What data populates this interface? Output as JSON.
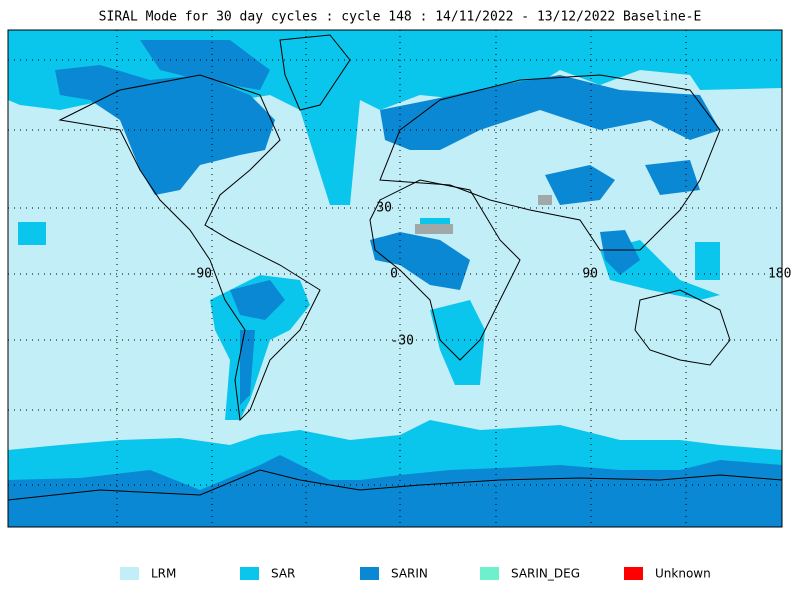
{
  "title": "SIRAL Mode for 30 day cycles : cycle 148 : 14/11/2022 - 13/12/2022 Baseline-E",
  "graticule_labels": {
    "lat_30": "30",
    "lon_m90": "-90",
    "lon_0": "0",
    "lon_90": "90",
    "lon_180": "180",
    "lat_m30": "-30"
  },
  "legend": [
    {
      "label": "LRM",
      "color": "#c2eef7"
    },
    {
      "label": "SAR",
      "color": "#0bc6ec"
    },
    {
      "label": "SARIN",
      "color": "#0a88d4"
    },
    {
      "label": "SARIN_DEG",
      "color": "#6ff0cc"
    },
    {
      "label": "Unknown",
      "color": "#ff0000"
    }
  ]
}
